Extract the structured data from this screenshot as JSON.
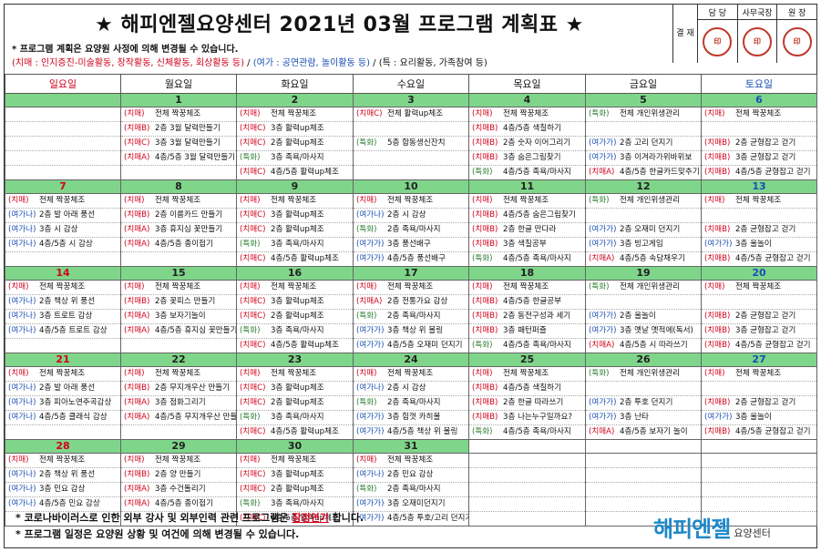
{
  "header": {
    "title": "★ 해피엔젤요양센터 2021년 03월 프로그램 계획표 ★",
    "notice_line1": "* 프로그램 계획은 요양원 사정에 의해 변경될 수 있습니다.",
    "legend_red": "(치매 : 인지증진-미술활동, 창작활동, 신체활동, 회상활동 등)",
    "legend_sep1": " / ",
    "legend_blue": "(여가 : 공연관람, 놀이활동 등)",
    "legend_sep2": " / ",
    "legend_special": "(특 : 요리활동, 가족참여 등)"
  },
  "approval": {
    "head": "결 재",
    "cols": [
      {
        "label": "담 당",
        "stamp": "印"
      },
      {
        "label": "사무국장",
        "stamp": "印"
      },
      {
        "label": "원 장",
        "stamp": "印"
      }
    ]
  },
  "weekdays": [
    "일요일",
    "월요일",
    "화요일",
    "수요일",
    "목요일",
    "금요일",
    "토요일"
  ],
  "weeks": [
    {
      "days": [
        "",
        "1",
        "2",
        "3",
        "4",
        "5",
        "6"
      ],
      "cells": [
        [],
        [
          [
            "(치매)",
            "전체 짝꿍체조"
          ],
          [
            "(치매B)",
            "2층 3월 달력만들기"
          ],
          [
            "(치매C)",
            "3층 3월 달력만들기"
          ],
          [
            "(치매A)",
            "4층/5층 3월 달력만들기"
          ]
        ],
        [
          [
            "(치매)",
            "전체 짝꿍체조"
          ],
          [
            "(치매C)",
            "3층 활력up체조"
          ],
          [
            "(치매C)",
            "2층 활력up체조"
          ],
          [
            "(특화)",
            "3층 족욕/마사지"
          ],
          [
            "(치매C)",
            "4층/5층 활력up체조"
          ]
        ],
        [
          [
            "(치매C)",
            "전체 활력up체조"
          ],
          [
            "",
            ""
          ],
          [
            "(특화)",
            "5층 합동생신잔치"
          ],
          [
            "",
            ""
          ]
        ],
        [
          [
            "(치매)",
            "전체 짝꿍체조"
          ],
          [
            "(치매B)",
            "4층/5층 색칠하기"
          ],
          [
            "(치매B)",
            "2층 숫자 이어그리기"
          ],
          [
            "(치매B)",
            "3층 숨은그림찾기"
          ],
          [
            "(특화)",
            "4층/5층 족욕/마사지"
          ]
        ],
        [
          [
            "(특화)",
            "전체 개인위생관리"
          ],
          [
            "",
            ""
          ],
          [
            "(여가가)",
            "2층 고리 던지기"
          ],
          [
            "(여가가)",
            "3층 이겨라가위바위보"
          ],
          [
            "(치매A)",
            "4층/5층 한글카드맞추기"
          ]
        ],
        [
          [
            "(치매)",
            "전체 짝꿍체조"
          ],
          [
            "",
            ""
          ],
          [
            "(치매B)",
            "2층 균형잡고 걷기"
          ],
          [
            "(치매B)",
            "3층 균형잡고 걷기"
          ],
          [
            "(치매B)",
            "4층/5층 균형잡고 걷기"
          ]
        ]
      ]
    },
    {
      "days": [
        "7",
        "8",
        "9",
        "10",
        "11",
        "12",
        "13"
      ],
      "cells": [
        [
          [
            "(치매)",
            "전체 짝꿍체조"
          ],
          [
            "(여가나)",
            "2층 발 아래 풍선"
          ],
          [
            "(여가나)",
            "3층 시 감상"
          ],
          [
            "(여가나)",
            "4층/5층 시 감상"
          ]
        ],
        [
          [
            "(치매)",
            "전체 짝꿍체조"
          ],
          [
            "(치매B)",
            "2층 이름카드 만들기"
          ],
          [
            "(치매A)",
            "3층 휴지심 꽃만들기"
          ],
          [
            "(치매A)",
            "4층/5층 종이접기"
          ]
        ],
        [
          [
            "(치매)",
            "전체 짝꿍체조"
          ],
          [
            "(치매C)",
            "3층 활력up체조"
          ],
          [
            "(치매C)",
            "2층 활력up체조"
          ],
          [
            "(특화)",
            "3층 족욕/마사지"
          ],
          [
            "(치매C)",
            "4층/5층 활력up체조"
          ]
        ],
        [
          [
            "(치매)",
            "전체 짝꿍체조"
          ],
          [
            "(여가나)",
            "2층 시 감상"
          ],
          [
            "(특화)",
            "2층 족욕/마사지"
          ],
          [
            "(여가가)",
            "3층 풍선배구"
          ],
          [
            "(여가가)",
            "4층/5층 풍선배구"
          ]
        ],
        [
          [
            "(치매)",
            "전체 짝꿍체조"
          ],
          [
            "(치매B)",
            "4층/5층 숨은그림찾기"
          ],
          [
            "(치매B)",
            "2층 한글 만다라"
          ],
          [
            "(치매B)",
            "3층 색칠공부"
          ],
          [
            "(특화)",
            "4층/5층 족욕/마사지"
          ]
        ],
        [
          [
            "(특화)",
            "전체 개인위생관리"
          ],
          [
            "",
            ""
          ],
          [
            "(여가가)",
            "2층 오재미 던지기"
          ],
          [
            "(여가가)",
            "3층 빙고게임"
          ],
          [
            "(치매A)",
            "4층/5층 속담채우기"
          ]
        ],
        [
          [
            "(치매)",
            "전체 짝꿍체조"
          ],
          [
            "",
            ""
          ],
          [
            "(치매B)",
            "2층 균형잡고 걷기"
          ],
          [
            "(여가가)",
            "3층 울놀이"
          ],
          [
            "(치매B)",
            "4층/5층 균형잡고 걷기"
          ]
        ]
      ]
    },
    {
      "days": [
        "14",
        "15",
        "16",
        "17",
        "18",
        "19",
        "20"
      ],
      "cells": [
        [
          [
            "(치매)",
            "전체 짝꿍체조"
          ],
          [
            "(여가나)",
            "2층 책상 위 풍선"
          ],
          [
            "(여가나)",
            "3층 트로트 감상"
          ],
          [
            "(여가나)",
            "4층/5층 트로트 감상"
          ]
        ],
        [
          [
            "(치매)",
            "전체 짝꿍체조"
          ],
          [
            "(치매B)",
            "2층 꽃피스 만들기"
          ],
          [
            "(치매A)",
            "3층 보자기놀이"
          ],
          [
            "(치매A)",
            "4층/5층 휴지심 꽃만들기"
          ]
        ],
        [
          [
            "(치매)",
            "전체 짝꿍체조"
          ],
          [
            "(치매C)",
            "3층 활력up체조"
          ],
          [
            "(치매C)",
            "2층 활력up체조"
          ],
          [
            "(특화)",
            "3층 족욕/마사지"
          ],
          [
            "(치매C)",
            "4층/5층 활력up체조"
          ]
        ],
        [
          [
            "(치매)",
            "전체 짝꿍체조"
          ],
          [
            "(치매A)",
            "2층 전통가요 감상"
          ],
          [
            "(특화)",
            "2층 족욕/마사지"
          ],
          [
            "(여가가)",
            "3층 책상 위 볼링"
          ],
          [
            "(여가가)",
            "4층/5층 오재미 던지기"
          ]
        ],
        [
          [
            "(치매)",
            "전체 짝꿍체조"
          ],
          [
            "(치매B)",
            "4층/5층 한글공부"
          ],
          [
            "(치매B)",
            "2층 동전구성과 세기"
          ],
          [
            "(치매B)",
            "3층 패턴퍼즐"
          ],
          [
            "(특화)",
            "4층/5층 족욕/마사지"
          ]
        ],
        [
          [
            "(특화)",
            "전체 개인위생관리"
          ],
          [
            "",
            ""
          ],
          [
            "(여가가)",
            "2층 울놀이"
          ],
          [
            "(여가가)",
            "3층 옛날 옛적에(독서)"
          ],
          [
            "(치매A)",
            "4층/5층 시 따라쓰기"
          ]
        ],
        [
          [
            "(치매)",
            "전체 짝꿍체조"
          ],
          [
            "",
            ""
          ],
          [
            "(치매B)",
            "2층 균형잡고 걷기"
          ],
          [
            "(치매B)",
            "3층 균형잡고 걷기"
          ],
          [
            "(치매B)",
            "4층/5층 균형잡고 걷기"
          ]
        ]
      ]
    },
    {
      "days": [
        "21",
        "22",
        "23",
        "24",
        "25",
        "26",
        "27"
      ],
      "cells": [
        [
          [
            "(치매)",
            "전체 짝꿍체조"
          ],
          [
            "(여가나)",
            "2층 발 아래 풍선"
          ],
          [
            "(여가나)",
            "3층 피아노연주곡감상"
          ],
          [
            "(여가나)",
            "4층/5층 클래식 감상"
          ]
        ],
        [
          [
            "(치매)",
            "전체 짝꿍체조"
          ],
          [
            "(치매B)",
            "2층 무지개우산 만들기"
          ],
          [
            "(치매A)",
            "3층 점화그리기"
          ],
          [
            "(치매A)",
            "4층/5층 무지개우산 만들기"
          ]
        ],
        [
          [
            "(치매)",
            "전체 짝꿍체조"
          ],
          [
            "(치매C)",
            "3층 활력up체조"
          ],
          [
            "(치매C)",
            "2층 활력up체조"
          ],
          [
            "(특화)",
            "3층 족욕/마사지"
          ],
          [
            "(치매C)",
            "4층/5층 활력up체조"
          ]
        ],
        [
          [
            "(치매)",
            "전체 짝꿍체조"
          ],
          [
            "(여가나)",
            "2층 시 감상"
          ],
          [
            "(특화)",
            "2층 족욕/마사지"
          ],
          [
            "(여가가)",
            "3층 힘껏 카히볼"
          ],
          [
            "(여가가)",
            "4층/5층 책상 위 볼링"
          ]
        ],
        [
          [
            "(치매)",
            "전체 짝꿍체조"
          ],
          [
            "(치매B)",
            "4층/5층 색칠하기"
          ],
          [
            "(치매B)",
            "2층 한글 따라쓰기"
          ],
          [
            "(치매B)",
            "3층 나는누구일까요?"
          ],
          [
            "(특화)",
            "4층/5층 족욕/마사지"
          ]
        ],
        [
          [
            "(특화)",
            "전체 개인위생관리"
          ],
          [
            "",
            ""
          ],
          [
            "(여가가)",
            "2층 투호 던지기"
          ],
          [
            "(여가가)",
            "3층 난타"
          ],
          [
            "(치매A)",
            "4층/5층 보자기 놀이"
          ]
        ],
        [
          [
            "(치매)",
            "전체 짝꿍체조"
          ],
          [
            "",
            ""
          ],
          [
            "(치매B)",
            "2층 균형잡고 걷기"
          ],
          [
            "(여가가)",
            "3층 울놀이"
          ],
          [
            "(치매B)",
            "4층/5층 균형잡고 걷기"
          ]
        ]
      ]
    },
    {
      "days": [
        "28",
        "29",
        "30",
        "31",
        "",
        "",
        ""
      ],
      "cells": [
        [
          [
            "(치매)",
            "전체 짝꿍체조"
          ],
          [
            "(여가나)",
            "2층 책상 위 풍선"
          ],
          [
            "(여가나)",
            "3층 민요 감상"
          ],
          [
            "(여가나)",
            "4층/5층 민요 감상"
          ]
        ],
        [
          [
            "(치매)",
            "전체 짝꿍체조"
          ],
          [
            "(치매B)",
            "2층 양 만들기"
          ],
          [
            "(치매A)",
            "3층 수건돌리기"
          ],
          [
            "(치매A)",
            "4층/5층 종이접기"
          ]
        ],
        [
          [
            "(치매)",
            "전체 짝꿍체조"
          ],
          [
            "(치매C)",
            "3층 활력up체조"
          ],
          [
            "(치매C)",
            "2층 활력up체조"
          ],
          [
            "(특화)",
            "3층 족욕/마사지"
          ],
          [
            "(치매C)",
            "4층/5층 활력up체조"
          ]
        ],
        [
          [
            "(치매)",
            "전체 짝꿍체조"
          ],
          [
            "(여가나)",
            "2층 민요 감상"
          ],
          [
            "(특화)",
            "2층 족욕/마사지"
          ],
          [
            "(여가가)",
            "3층 오재미던지기"
          ],
          [
            "(여가가)",
            "4층/5층 투호/고리 던지기"
          ]
        ],
        [],
        [],
        []
      ]
    }
  ],
  "footer": {
    "line1_a": "* 코로나바이러스로 인한 외부 강사 및 외부인력 관련 프로그램은 ",
    "line1_highlight": "잠정연기",
    "line1_b": " 합니다.",
    "line2": "* 프로그램 일정은 요양원 상황 및 여건에 의해 변경될 수 있습니다."
  },
  "logo": {
    "main": "해피엔젤",
    "sub": "요양센터"
  },
  "colors": {
    "day_row_bg": "#7fd68a",
    "sunday": "#d0021b",
    "saturday": "#1a4fb5",
    "logo": "#1e88c8"
  }
}
